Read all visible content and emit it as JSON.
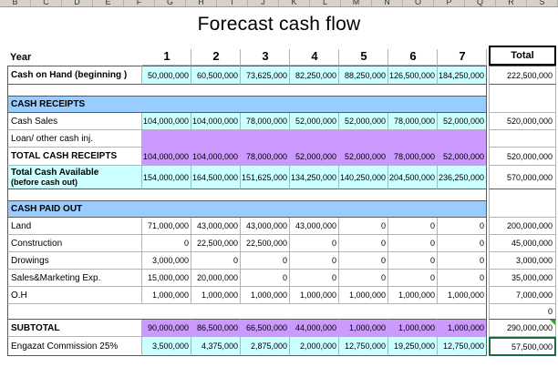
{
  "title": "Forecast cash flow",
  "column_letters": [
    "B",
    "C",
    "D",
    "E",
    "F",
    "G",
    "H",
    "I",
    "J",
    "K",
    "L",
    "M",
    "N",
    "O",
    "P",
    "Q",
    "R",
    "S"
  ],
  "colors": {
    "section_header": "#99CCFF",
    "cell_cyan": "#CCFFFF",
    "cell_lavender": "#CC99FF",
    "selected_cell_border": "#1A6B40",
    "indicator_triangle": "#2DA12D"
  },
  "table": {
    "year_label": "Year",
    "year_headers": [
      "1",
      "2",
      "3",
      "4",
      "5",
      "6",
      "7"
    ],
    "total_header": "Total",
    "rows": [
      {
        "name": "cash-on-hand",
        "style": "cash",
        "label": "Cash on Hand (beginning )",
        "values": [
          "50,000,000",
          "60,500,000",
          "73,625,000",
          "82,250,000",
          "88,250,000",
          "126,500,000",
          "184,250,000"
        ],
        "total": "222,500,000"
      },
      {
        "name": "spacer-1",
        "style": "spacer",
        "label": "",
        "values": [
          "",
          "",
          "",
          "",
          "",
          "",
          ""
        ],
        "total": ""
      },
      {
        "name": "cash-receipts",
        "style": "section",
        "label": "CASH RECEIPTS",
        "total": ""
      },
      {
        "name": "cash-sales",
        "style": "cyan",
        "label": "Cash Sales",
        "values": [
          "104,000,000",
          "104,000,000",
          "78,000,000",
          "52,000,000",
          "52,000,000",
          "78,000,000",
          "52,000,000"
        ],
        "total": "520,000,000"
      },
      {
        "name": "loan-other-cash-inj",
        "style": "lavender",
        "label": "Loan/ other cash inj.",
        "values": [
          "",
          "",
          "",
          "",
          "",
          "",
          ""
        ],
        "total": ""
      },
      {
        "name": "total-cash-receipts",
        "style": "totalrow",
        "label": "TOTAL CASH RECEIPTS",
        "values": [
          "104,000,000",
          "104,000,000",
          "78,000,000",
          "52,000,000",
          "52,000,000",
          "78,000,000",
          "52,000,000"
        ],
        "total": "520,000,000"
      },
      {
        "name": "total-cash-available",
        "style": "available",
        "label": "Total Cash Available",
        "label2": "(before cash out)",
        "values": [
          "154,000,000",
          "164,500,000",
          "151,625,000",
          "134,250,000",
          "140,250,000",
          "204,500,000",
          "236,250,000"
        ],
        "total": "570,000,000"
      },
      {
        "name": "spacer-2",
        "style": "spacer",
        "label": "",
        "values": [
          "",
          "",
          "",
          "",
          "",
          "",
          ""
        ],
        "total": ""
      },
      {
        "name": "cash-paid-out",
        "style": "section",
        "label": "CASH PAID OUT",
        "total": ""
      },
      {
        "name": "land",
        "style": "white",
        "label": "Land",
        "values": [
          "71,000,000",
          "43,000,000",
          "43,000,000",
          "43,000,000",
          "0",
          "0",
          "0"
        ],
        "total": "200,000,000"
      },
      {
        "name": "construction",
        "style": "white",
        "label": "Construction",
        "values": [
          "0",
          "22,500,000",
          "22,500,000",
          "0",
          "0",
          "0",
          "0"
        ],
        "total": "45,000,000"
      },
      {
        "name": "drowings",
        "style": "white",
        "label": "Drowings",
        "values": [
          "3,000,000",
          "0",
          "0",
          "0",
          "0",
          "0",
          "0"
        ],
        "total": "3,000,000"
      },
      {
        "name": "sales-marketing-exp",
        "style": "white",
        "label": "Sales&Marketing Exp.",
        "values": [
          "15,000,000",
          "20,000,000",
          "0",
          "0",
          "0",
          "0",
          "0"
        ],
        "total": "35,000,000"
      },
      {
        "name": "oh",
        "style": "white",
        "label": "O.H",
        "values": [
          "1,000,000",
          "1,000,000",
          "1,000,000",
          "1,000,000",
          "1,000,000",
          "1,000,000",
          "1,000,000"
        ],
        "total": "7,000,000"
      },
      {
        "name": "blank",
        "style": "blank",
        "label": "",
        "values": [
          "",
          "",
          "",
          "",
          "",
          "",
          ""
        ],
        "total": "0"
      },
      {
        "name": "subtotal",
        "style": "subtotal",
        "label": "SUBTOTAL",
        "values": [
          "90,000,000",
          "86,500,000",
          "66,500,000",
          "44,000,000",
          "1,000,000",
          "1,000,000",
          "1,000,000"
        ],
        "total": "290,000,000"
      },
      {
        "name": "engazat-commission",
        "style": "engazat",
        "label": "Engazat Commission 25%",
        "values": [
          "3,500,000",
          "4,375,000",
          "2,875,000",
          "2,000,000",
          "12,750,000",
          "19,250,000",
          "12,750,000"
        ],
        "total": "57,500,000"
      }
    ]
  }
}
